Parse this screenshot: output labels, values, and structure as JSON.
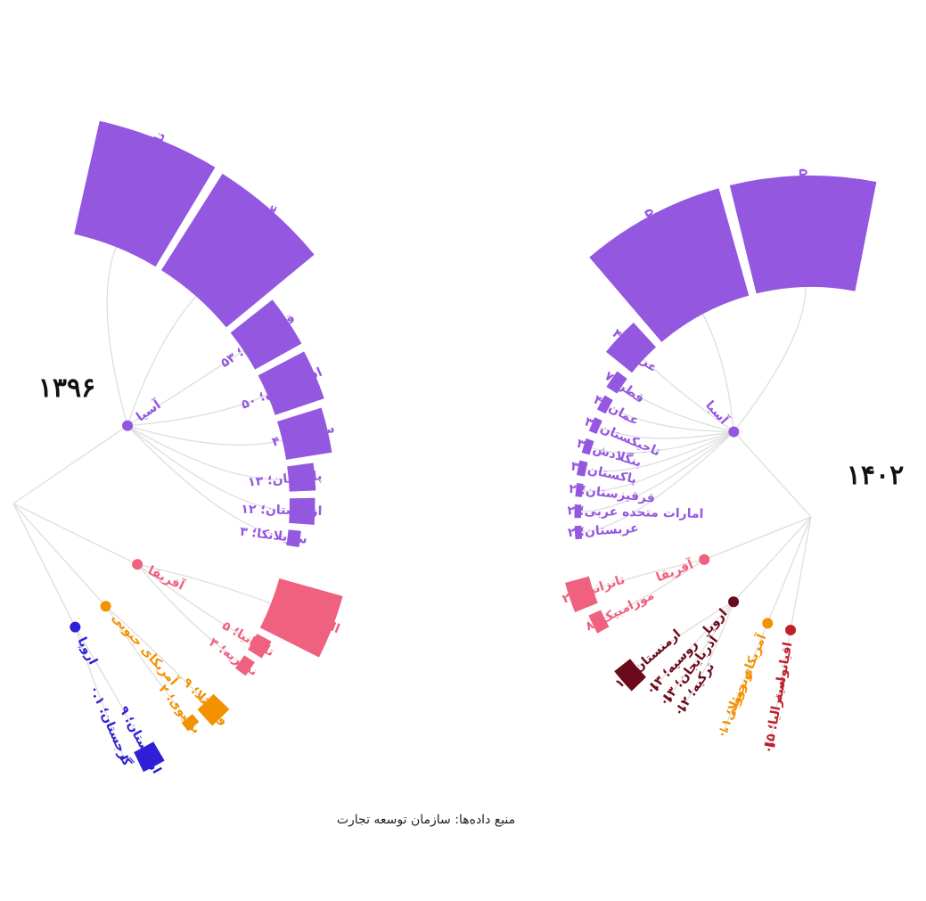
{
  "chart_data": [
    {
      "type": "radial-tree",
      "title": "۱۳۹۶",
      "groups": [
        {
          "name": "آسیا",
          "color": "#9457e0",
          "items": [
            {
              "label": "تاجیکستان؛ ۲۵۰",
              "value": 250
            },
            {
              "label": "عراق؛ ۲۴۳",
              "value": 243
            },
            {
              "label": "قزاقستان؛ ۵۳",
              "value": 53
            },
            {
              "label": "افغانستان؛ ۵۰",
              "value": 50
            },
            {
              "label": "سوریه، ۴۰",
              "value": 40
            },
            {
              "label": "پاکستان؛ ۱۳",
              "value": 13
            },
            {
              "label": "ازبکستان؛ ۱۲",
              "value": 12
            },
            {
              "label": "سریلانکا؛ ۳",
              "value": 3
            }
          ]
        },
        {
          "name": "آفریقا",
          "color": "#f0607f",
          "items": [
            {
              "label": "الجزایر؛ ۸۱",
              "value": 81
            },
            {
              "label": "تانزانیا؛ ۵",
              "value": 5
            },
            {
              "label": "نیجریه؛ ۳",
              "value": 3
            }
          ]
        },
        {
          "name": "آمریکای جنوبی",
          "color": "#f39200",
          "items": [
            {
              "label": "ونزوئلا؛ ۹",
              "value": 9
            },
            {
              "label": "بولیوی؛ ۲",
              "value": 2
            }
          ]
        },
        {
          "name": "اروپا",
          "color": "#2f1fd6",
          "items": [
            {
              "label": "ارمنستان؛ ۹",
              "value": 9
            },
            {
              "label": "گرجستان؛ ۰.۱",
              "value": 0.1
            }
          ]
        }
      ]
    },
    {
      "type": "radial-tree",
      "title": "۱۴۰۲",
      "groups": [
        {
          "name": "آسیا",
          "color": "#9457e0",
          "items": [
            {
              "label": "ترکمنستان؛ ۵۵۰",
              "value": 550
            },
            {
              "label": "سوریه؛ ۵۵۰",
              "value": 550
            },
            {
              "label": "عراق؛ ۴۹",
              "value": 49
            },
            {
              "label": "قطر؛ ۷",
              "value": 7
            },
            {
              "label": "عمان؛ ۴",
              "value": 4
            },
            {
              "label": "تاجیکستان؛ ۳",
              "value": 3
            },
            {
              "label": "بنگلادش؛ ۳",
              "value": 3
            },
            {
              "label": "پاکستان؛ ۳",
              "value": 3
            },
            {
              "label": "قرقیزستان؛ ۲",
              "value": 2
            },
            {
              "label": "امارات متحده عربی؛ ۲",
              "value": 2
            },
            {
              "label": "عربستان؛ ۲",
              "value": 2
            }
          ]
        },
        {
          "name": "آفریقا",
          "color": "#f0607f",
          "items": [
            {
              "label": "تانزانیا؛ ۲۷",
              "value": 27
            },
            {
              "label": "موزامبیک؛ ۸",
              "value": 8
            }
          ]
        },
        {
          "name": "اروپا",
          "color": "#6b0a1a",
          "items": [
            {
              "label": "ارمنستان؛ ۱۸",
              "value": 18
            },
            {
              "label": "روسیه؛ ۰.۳",
              "value": 0.3
            },
            {
              "label": "آذربایجان؛ ۰.۳",
              "value": 0.3
            },
            {
              "label": "ترکیه؛ ۰.۲",
              "value": 0.2
            }
          ]
        },
        {
          "name": "آمریکای جنوبی",
          "color": "#f39200",
          "items": [
            {
              "label": "ونزوئلا؛ ۰.۱",
              "value": 0.1
            }
          ]
        },
        {
          "name": "اقیانوسیه",
          "color": "#c0202a",
          "items": [
            {
              "label": "استرالیا؛ ۰.۵",
              "value": 0.5
            }
          ]
        }
      ]
    }
  ],
  "source": "منبع داده‌ها: سازمان توسعه تجارت"
}
